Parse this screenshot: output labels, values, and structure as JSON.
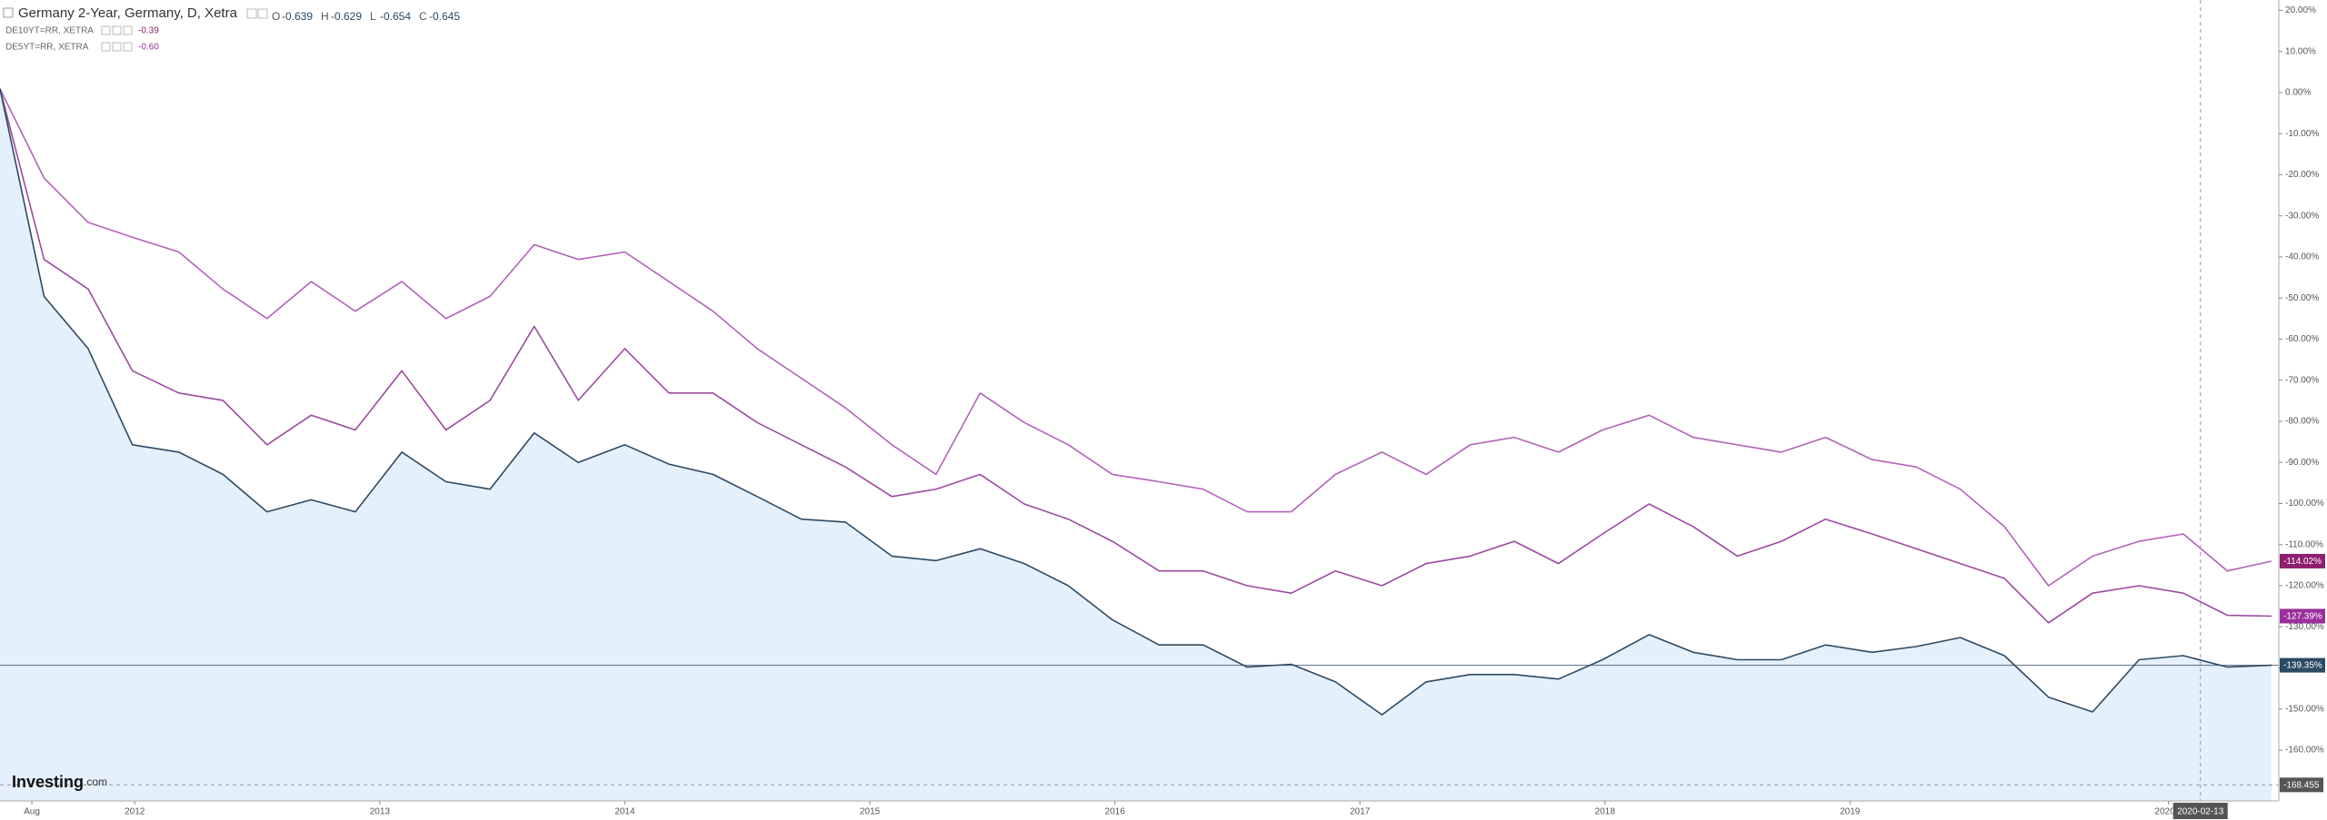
{
  "chart_data": {
    "type": "line",
    "title": "Germany 2-Year, Germany, D, Xetra",
    "ohlc": [
      {
        "name": "O",
        "value": -0.639
      },
      {
        "name": "H",
        "value": -0.629
      },
      {
        "name": "L",
        "value": -0.654
      },
      {
        "name": "C",
        "value": -0.645
      }
    ],
    "brand": [
      "Investing",
      ".com"
    ],
    "x": [
      2011.45,
      2011.63,
      2011.81,
      2011.99,
      2012.18,
      2012.36,
      2012.54,
      2012.72,
      2012.9,
      2013.09,
      2013.27,
      2013.45,
      2013.63,
      2013.81,
      2014.0,
      2014.18,
      2014.36,
      2014.54,
      2014.72,
      2014.9,
      2015.09,
      2015.27,
      2015.45,
      2015.63,
      2015.81,
      2015.99,
      2016.18,
      2016.36,
      2016.54,
      2016.72,
      2016.9,
      2017.09,
      2017.27,
      2017.45,
      2017.63,
      2017.81,
      2017.99,
      2018.18,
      2018.36,
      2018.54,
      2018.72,
      2018.9,
      2019.09,
      2019.27,
      2019.45,
      2019.63,
      2019.81,
      2019.99,
      2020.18,
      2020.36,
      2020.54,
      2020.72
    ],
    "series": [
      {
        "name": "DE10YT=RR, XETRA",
        "price": {
          "value": -0.39,
          "label": "-0.39"
        },
        "color": "#b263b8",
        "label_color": "#8e1f6f",
        "last_value": {
          "value": -114.02,
          "label": "-114.02%"
        },
        "values": [
          0.9,
          -20.8,
          -31.6,
          -35.2,
          -38.8,
          -47.8,
          -55.0,
          -46.0,
          -53.2,
          -46.0,
          -55.0,
          -49.6,
          -37.0,
          -40.6,
          -38.8,
          -46.0,
          -53.2,
          -62.3,
          -69.5,
          -76.7,
          -85.7,
          -92.9,
          -73.1,
          -80.3,
          -85.7,
          -92.9,
          -94.7,
          -96.5,
          -102.0,
          -102.0,
          -92.9,
          -87.5,
          -92.9,
          -85.7,
          -83.9,
          -87.5,
          -82.1,
          -78.5,
          -83.9,
          -85.7,
          -87.5,
          -83.9,
          -89.3,
          -91.1,
          -96.5,
          -105.6,
          -120.0,
          -112.8,
          -109.2,
          -107.4,
          -116.4,
          -114.02
        ]
      },
      {
        "name": "DE5YT=RR, XETRA",
        "price": {
          "value": -0.6,
          "label": "-0.60"
        },
        "color": "#9c4aa0",
        "label_color": "#9b2f9b",
        "last_value": {
          "value": -127.39,
          "label": "-127.39%"
        },
        "values": [
          0.9,
          -40.6,
          -47.8,
          -67.7,
          -73.1,
          -74.9,
          -85.7,
          -78.5,
          -82.1,
          -67.7,
          -82.1,
          -74.9,
          -56.9,
          -74.9,
          -62.3,
          -73.1,
          -73.1,
          -80.3,
          -85.7,
          -91.1,
          -98.3,
          -96.5,
          -92.9,
          -100.1,
          -103.8,
          -109.2,
          -116.4,
          -116.4,
          -120.0,
          -121.8,
          -116.4,
          -120.0,
          -114.6,
          -112.8,
          -109.2,
          -114.6,
          -107.4,
          -100.1,
          -105.6,
          -112.8,
          -109.2,
          -103.8,
          -107.4,
          -111.0,
          -114.6,
          -118.2,
          -129.0,
          -121.8,
          -120.0,
          -121.8,
          -127.2,
          -127.39
        ]
      },
      {
        "name": "Germany 2-Year",
        "color": "#2e4a63",
        "area_color": "#e4f0fb",
        "label_color": "#2c4a63",
        "last_value": {
          "value": -139.35,
          "label": "-139.35%"
        },
        "values": [
          0.9,
          -49.6,
          -62.3,
          -85.7,
          -87.5,
          -92.9,
          -102.0,
          -99.1,
          -102.0,
          -87.5,
          -94.7,
          -96.5,
          -82.8,
          -90.0,
          -85.7,
          -90.4,
          -92.9,
          -98.3,
          -103.8,
          -104.5,
          -112.8,
          -113.9,
          -111.0,
          -114.6,
          -120.0,
          -128.3,
          -134.4,
          -134.4,
          -139.8,
          -139.1,
          -143.4,
          -151.4,
          -143.4,
          -141.6,
          -141.6,
          -142.7,
          -138.0,
          -131.9,
          -136.2,
          -138.0,
          -138.0,
          -134.4,
          -136.2,
          -134.8,
          -132.6,
          -137.0,
          -147.1,
          -150.7,
          -138.0,
          -137.0,
          -139.8,
          -139.35
        ]
      }
    ],
    "xlim": [
      2011.45,
      2020.75
    ],
    "xticks": [
      {
        "value": 2011.58,
        "label": "Aug"
      },
      2012,
      2013,
      2014,
      2015,
      2016,
      2017,
      2018,
      2019,
      2020.3
    ],
    "ylim": [
      -172.36,
      22.52
    ],
    "yticks": [
      {
        "value": 20,
        "label": "20.00%"
      },
      {
        "value": 10,
        "label": "10.00%"
      },
      {
        "value": 0,
        "label": "0.00%"
      },
      {
        "value": -10,
        "label": "-10.00%"
      },
      {
        "value": -20,
        "label": "-20.00%"
      },
      {
        "value": -30,
        "label": "-30.00%"
      },
      {
        "value": -40,
        "label": "-40.00%"
      },
      {
        "value": -50,
        "label": "-50.00%"
      },
      {
        "value": -60,
        "label": "-60.00%"
      },
      {
        "value": -70,
        "label": "-70.00%"
      },
      {
        "value": -80,
        "label": "-80.00%"
      },
      {
        "value": -90,
        "label": "-90.00%"
      },
      {
        "value": -100,
        "label": "-100.00%"
      },
      {
        "value": -110,
        "label": "-110.00%"
      },
      {
        "value": -120,
        "label": "-120.00%"
      },
      {
        "value": -130,
        "label": "-130.00%"
      },
      {
        "value": -140,
        "label": "-140.00%"
      },
      {
        "value": -150,
        "label": "-150.00%"
      },
      {
        "value": -160,
        "label": "-160.00%"
      }
    ],
    "crosshair": {
      "x": {
        "value": 2020.43,
        "label": "2020-02-13"
      },
      "y": -168.455
    },
    "grid": false
  }
}
